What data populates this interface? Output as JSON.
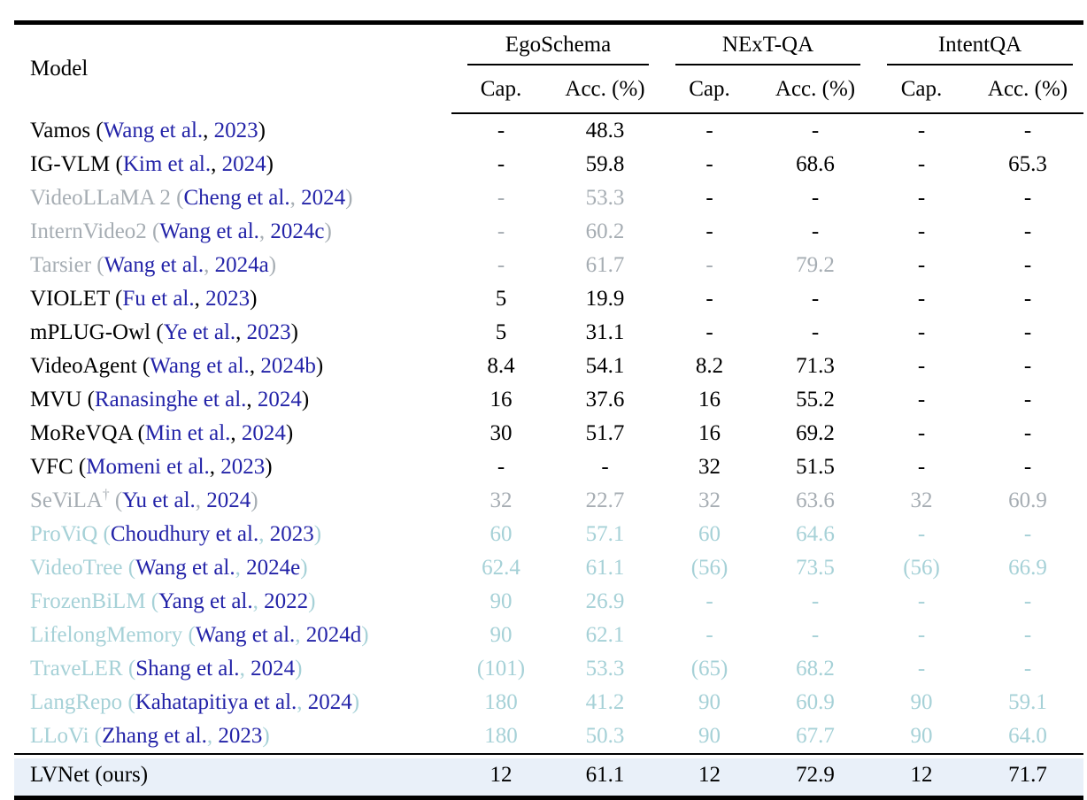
{
  "colors": {
    "citation_navy": "#2323a8",
    "muted_gray": "#a6adb3",
    "muted_teal": "#a6d1d7",
    "highlight_bg": "#e9f0f9",
    "text_black": "#000000",
    "rule_black": "#000000"
  },
  "table": {
    "model_header": "Model",
    "citation_punctuation": {
      "open": " (",
      "separator": ",",
      "close": ")"
    },
    "groups": [
      {
        "label": "EgoSchema",
        "subcols": [
          "Cap.",
          "Acc. (%)"
        ]
      },
      {
        "label": "NExT-QA",
        "subcols": [
          "Cap.",
          "Acc. (%)"
        ]
      },
      {
        "label": "IntentQA",
        "subcols": [
          "Cap.",
          "Acc. (%)"
        ]
      }
    ],
    "rows": [
      {
        "name": "Vamos",
        "cite": "Wang et al.",
        "year": "2023",
        "color": "black",
        "values": [
          "-",
          "48.3",
          "-",
          "-",
          "-",
          "-"
        ]
      },
      {
        "name": "IG-VLM",
        "cite": "Kim et al.",
        "year": "2024",
        "color": "black",
        "values": [
          "-",
          "59.8",
          "-",
          "68.6",
          "-",
          "65.3"
        ]
      },
      {
        "name": "VideoLLaMA 2",
        "cite": "Cheng et al.",
        "year": "2024",
        "color": "gray",
        "values": [
          "-",
          "53.3",
          "-",
          "-",
          "-",
          "-"
        ],
        "value_colors": [
          "gray",
          "gray",
          "black",
          "black",
          "black",
          "black"
        ]
      },
      {
        "name": "InternVideo2",
        "cite": "Wang et al.",
        "year": "2024c",
        "color": "gray",
        "values": [
          "-",
          "60.2",
          "-",
          "-",
          "-",
          "-"
        ],
        "value_colors": [
          "gray",
          "gray",
          "black",
          "black",
          "black",
          "black"
        ]
      },
      {
        "name": "Tarsier",
        "cite": "Wang et al.",
        "year": "2024a",
        "color": "gray",
        "values": [
          "-",
          "61.7",
          "-",
          "79.2",
          "-",
          "-"
        ],
        "value_colors": [
          "gray",
          "gray",
          "gray",
          "gray",
          "black",
          "black"
        ]
      },
      {
        "name": "VIOLET",
        "cite": "Fu et al.",
        "year": "2023",
        "color": "black",
        "values": [
          "5",
          "19.9",
          "-",
          "-",
          "-",
          "-"
        ]
      },
      {
        "name": "mPLUG-Owl",
        "cite": "Ye et al.",
        "year": "2023",
        "color": "black",
        "values": [
          "5",
          "31.1",
          "-",
          "-",
          "-",
          "-"
        ]
      },
      {
        "name": "VideoAgent",
        "cite": "Wang et al.",
        "year": "2024b",
        "color": "black",
        "values": [
          "8.4",
          "54.1",
          "8.2",
          "71.3",
          "-",
          "-"
        ]
      },
      {
        "name": "MVU",
        "cite": "Ranasinghe et al.",
        "year": "2024",
        "color": "black",
        "values": [
          "16",
          "37.6",
          "16",
          "55.2",
          "-",
          "-"
        ]
      },
      {
        "name": "MoReVQA",
        "cite": "Min et al.",
        "year": "2024",
        "color": "black",
        "values": [
          "30",
          "51.7",
          "16",
          "69.2",
          "-",
          "-"
        ]
      },
      {
        "name": "VFC",
        "cite": "Momeni et al.",
        "year": "2023",
        "color": "black",
        "values": [
          "-",
          "-",
          "32",
          "51.5",
          "-",
          "-"
        ]
      },
      {
        "name": "SeViLA",
        "sup": "†",
        "cite": "Yu et al.",
        "year": "2024",
        "color": "gray",
        "values": [
          "32",
          "22.7",
          "32",
          "63.6",
          "32",
          "60.9"
        ]
      },
      {
        "name": "ProViQ",
        "cite": "Choudhury et al.",
        "year": "2023",
        "color": "teal",
        "values": [
          "60",
          "57.1",
          "60",
          "64.6",
          "-",
          "-"
        ]
      },
      {
        "name": "VideoTree",
        "cite": "Wang et al.",
        "year": "2024e",
        "color": "teal",
        "values": [
          "62.4",
          "61.1",
          "(56)",
          "73.5",
          "(56)",
          "66.9"
        ]
      },
      {
        "name": "FrozenBiLM",
        "cite": "Yang et al.",
        "year": "2022",
        "color": "teal",
        "values": [
          "90",
          "26.9",
          "-",
          "-",
          "-",
          "-"
        ]
      },
      {
        "name": "LifelongMemory",
        "cite": "Wang et al.",
        "year": "2024d",
        "color": "teal",
        "values": [
          "90",
          "62.1",
          "-",
          "-",
          "-",
          "-"
        ]
      },
      {
        "name": "TraveLER",
        "cite": "Shang et al.",
        "year": "2024",
        "color": "teal",
        "values": [
          "(101)",
          "53.3",
          "(65)",
          "68.2",
          "-",
          "-"
        ]
      },
      {
        "name": "LangRepo",
        "cite": "Kahatapitiya et al.",
        "year": "2024",
        "color": "teal",
        "values": [
          "180",
          "41.2",
          "90",
          "60.9",
          "90",
          "59.1"
        ]
      },
      {
        "name": "LLoVi",
        "cite": "Zhang et al.",
        "year": "2023",
        "color": "teal",
        "values": [
          "180",
          "50.3",
          "90",
          "67.7",
          "90",
          "64.0"
        ]
      }
    ],
    "highlight_row": {
      "name": "LVNet",
      "note": " (ours)",
      "color": "black",
      "values": [
        "12",
        "61.1",
        "12",
        "72.9",
        "12",
        "71.7"
      ]
    }
  }
}
